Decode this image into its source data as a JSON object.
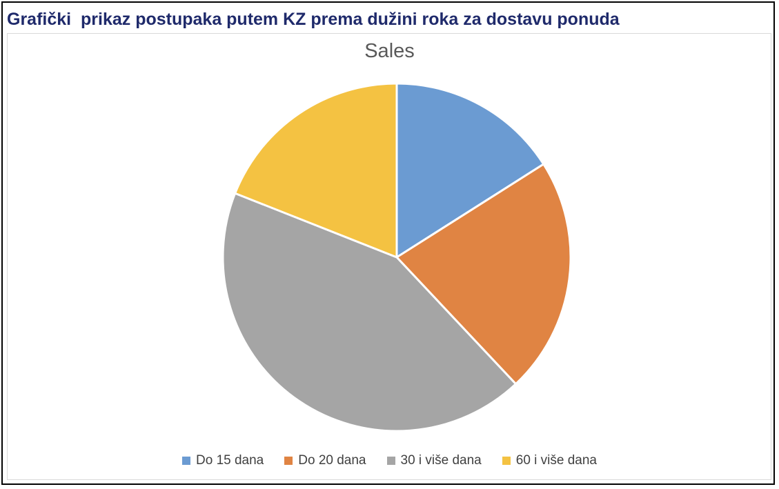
{
  "heading": "Grafički  prikaz postupaka putem KZ prema dužini roka za dostavu ponuda",
  "chart_data": {
    "type": "pie",
    "title": "Sales",
    "categories": [
      "Do 15 dana",
      "Do 20 dana",
      "30 i više dana",
      "60 i više dana"
    ],
    "values": [
      16,
      22,
      43,
      19
    ],
    "colors": [
      "#6b9bd2",
      "#e08443",
      "#a5a5a5",
      "#f4c242"
    ],
    "legend_position": "bottom"
  }
}
